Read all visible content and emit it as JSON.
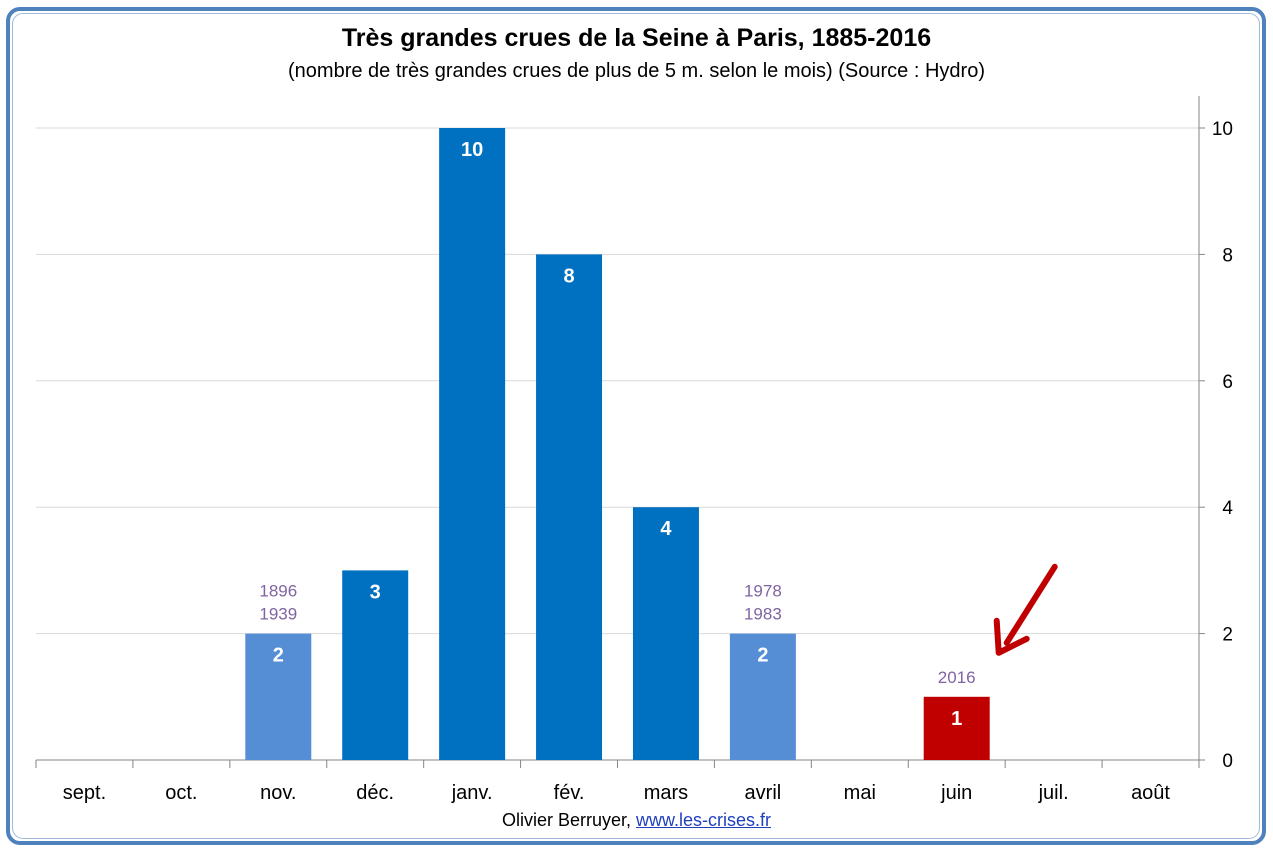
{
  "chart_data": {
    "type": "bar",
    "title": "Très grandes crues de la Seine à Paris, 1885-2016",
    "subtitle": "(nombre de très grandes crues de plus de 5 m. selon le mois) (Source : Hydro)",
    "categories": [
      "sept.",
      "oct.",
      "nov.",
      "déc.",
      "janv.",
      "fév.",
      "mars",
      "avril",
      "mai",
      "juin",
      "juil.",
      "août"
    ],
    "values": [
      0,
      0,
      2,
      3,
      10,
      8,
      4,
      2,
      0,
      1,
      0,
      0
    ],
    "bar_labels": [
      "",
      "",
      "2",
      "3",
      "10",
      "8",
      "4",
      "2",
      "",
      "1",
      "",
      ""
    ],
    "bar_colors": [
      "#0070c0",
      "#0070c0",
      "#558ed5",
      "#0070c0",
      "#0070c0",
      "#0070c0",
      "#0070c0",
      "#558ed5",
      "#0070c0",
      "#c00000",
      "#0070c0",
      "#0070c0"
    ],
    "year_annotations": [
      {
        "category": "nov.",
        "years": [
          "1896",
          "1939"
        ]
      },
      {
        "category": "avril",
        "years": [
          "1978",
          "1983"
        ]
      },
      {
        "category": "juin",
        "years": [
          "2016"
        ]
      }
    ],
    "annotation_color": "#8064a2",
    "arrow_color": "#c00000",
    "arrow_target": "juin",
    "ylim": [
      0,
      10
    ],
    "yticks": [
      0,
      2,
      4,
      6,
      8,
      10
    ],
    "y_axis_side": "right",
    "grid": true
  },
  "credit": {
    "author": "Olivier Berruyer,",
    "link": "www.les-crises.fr"
  }
}
